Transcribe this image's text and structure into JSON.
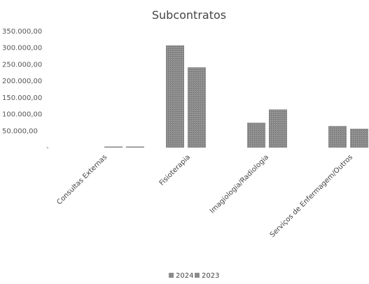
{
  "chart_data": {
    "type": "bar",
    "title": "Subcontratos",
    "categories": [
      "Consultas Externas",
      "Fisioterapia",
      "Imagiologia/Radiologia",
      "Serviços de Enfermagem/Outros"
    ],
    "series": [
      {
        "name": "2024",
        "values": [
          2000,
          308000,
          75000,
          65000
        ],
        "color": "#8a8a8a"
      },
      {
        "name": "2023",
        "values": [
          2000,
          242000,
          115000,
          57000
        ],
        "color": "#8a8a8a"
      }
    ],
    "y_ticks": [
      {
        "value": 50000,
        "label": "50.000,00"
      },
      {
        "value": 100000,
        "label": "100.000,00"
      },
      {
        "value": 150000,
        "label": "150.000,00"
      },
      {
        "value": 200000,
        "label": "200.000,00"
      },
      {
        "value": 250000,
        "label": "250.000,00"
      },
      {
        "value": 300000,
        "label": "300.000,00"
      },
      {
        "value": 350000,
        "label": "350.000,00"
      }
    ],
    "y_zero_label": "-",
    "ylim": [
      0,
      350000
    ],
    "grid": false,
    "legend_position": "bottom"
  }
}
